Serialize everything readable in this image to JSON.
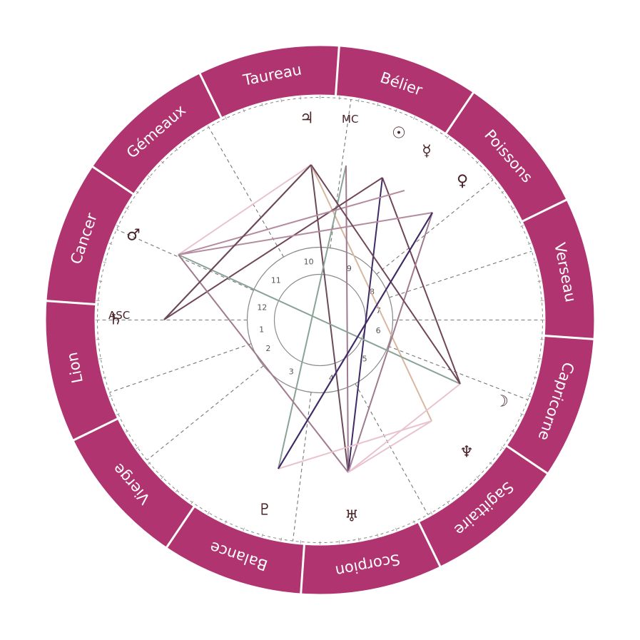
{
  "colors": {
    "zodiac_band": "#b03470",
    "band_divider": "#ffffff",
    "cusp_line": "#777777",
    "glyph": "#4a2328"
  },
  "zodiac_signs": [
    {
      "name": "Bélier"
    },
    {
      "name": "Poissons"
    },
    {
      "name": "Verseau"
    },
    {
      "name": "Capricorne"
    },
    {
      "name": "Sagittaire"
    },
    {
      "name": "Scorpion"
    },
    {
      "name": "Balance"
    },
    {
      "name": "Vierge"
    },
    {
      "name": "Lion"
    },
    {
      "name": "Cancer"
    },
    {
      "name": "Gémeaux"
    },
    {
      "name": "Taureau"
    }
  ],
  "axes": {
    "asc_label": "ASC",
    "mc_label": "MC"
  },
  "houses": [
    "1",
    "2",
    "3",
    "4",
    "5",
    "6",
    "7",
    "8",
    "9",
    "10",
    "11",
    "12"
  ],
  "planets": [
    {
      "name": "jupiter",
      "symbol": "♃"
    },
    {
      "name": "sun",
      "symbol": "☉"
    },
    {
      "name": "mercury",
      "symbol": "☿"
    },
    {
      "name": "venus",
      "symbol": "♀"
    },
    {
      "name": "mars",
      "symbol": "♂"
    },
    {
      "name": "saturn",
      "symbol": "♄"
    },
    {
      "name": "moon",
      "symbol": "☽"
    },
    {
      "name": "neptune",
      "symbol": "♆"
    },
    {
      "name": "uranus",
      "symbol": "♅"
    },
    {
      "name": "pluto",
      "symbol": "♇"
    }
  ],
  "aspects": [
    {
      "color": "#e9c3cd"
    },
    {
      "color": "#6b4a5a"
    },
    {
      "color": "#8aa396"
    },
    {
      "color": "#3f2b66"
    },
    {
      "color": "#a07a8e"
    },
    {
      "color": "#b58ba0"
    },
    {
      "color": "#d8b7a0"
    },
    {
      "color": "#704659"
    }
  ]
}
